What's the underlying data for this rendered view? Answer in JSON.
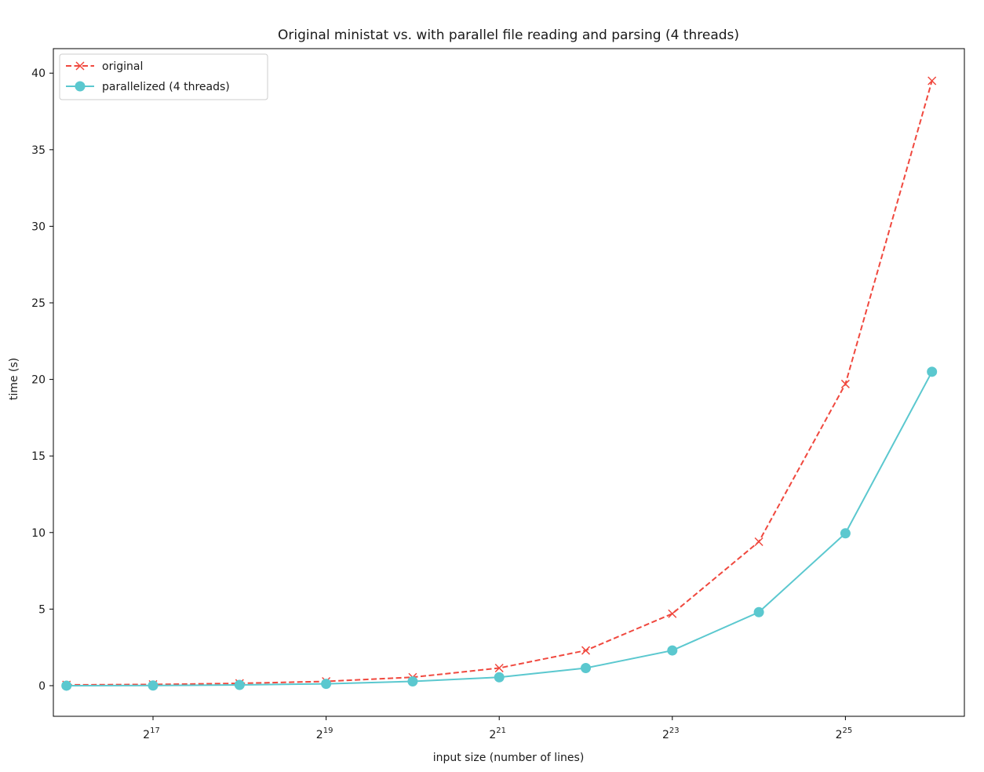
{
  "chart_data": {
    "type": "line",
    "title": "Original ministat vs. with parallel file reading and parsing (4 threads)",
    "xlabel": "input size (number of lines)",
    "ylabel": "time (s)",
    "x_scale": "log2",
    "x": [
      65536,
      131072,
      262144,
      524288,
      1048576,
      2097152,
      4194304,
      8388608,
      16777216,
      33554432,
      67108864
    ],
    "xlim": [
      59000,
      87000000
    ],
    "ylim": [
      -2.0,
      41.6
    ],
    "x_ticks": [
      {
        "value": 131072,
        "base": "2",
        "exp": "17"
      },
      {
        "value": 524288,
        "base": "2",
        "exp": "19"
      },
      {
        "value": 2097152,
        "base": "2",
        "exp": "21"
      },
      {
        "value": 8388608,
        "base": "2",
        "exp": "23"
      },
      {
        "value": 33554432,
        "base": "2",
        "exp": "25"
      }
    ],
    "y_ticks": [
      0,
      5,
      10,
      15,
      20,
      25,
      30,
      35,
      40
    ],
    "grid": false,
    "legend_position": "top-left",
    "series": [
      {
        "name": "original",
        "color": "#f0483e",
        "line_style": "dashed",
        "marker": "x",
        "values": [
          0.05,
          0.08,
          0.15,
          0.28,
          0.55,
          1.15,
          2.3,
          4.7,
          9.4,
          19.7,
          39.5
        ]
      },
      {
        "name": "parallelized (4 threads)",
        "color": "#5bc8cf",
        "line_style": "solid",
        "marker": "circle",
        "values": [
          0.0,
          0.01,
          0.05,
          0.12,
          0.28,
          0.55,
          1.15,
          2.3,
          4.8,
          9.95,
          20.5
        ]
      }
    ]
  }
}
